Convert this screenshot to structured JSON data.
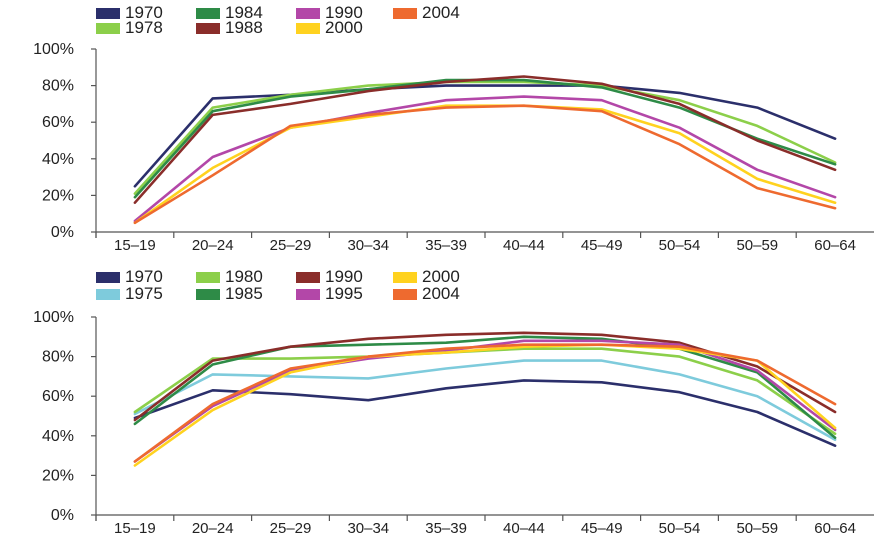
{
  "chart_data": [
    {
      "type": "line",
      "title": "",
      "xlabel": "",
      "ylabel": "",
      "ylim": [
        0,
        100
      ],
      "yticks": [
        "0%",
        "20%",
        "40%",
        "60%",
        "80%",
        "100%"
      ],
      "categories": [
        "15–19",
        "20–24",
        "25–29",
        "30–34",
        "35–39",
        "40–44",
        "45–49",
        "50–54",
        "50–59",
        "60–64"
      ],
      "grid": false,
      "legend_position": "top-left",
      "series": [
        {
          "name": "1970",
          "color": "#2b2f6b",
          "values": [
            25,
            73,
            75,
            78,
            80,
            80,
            80,
            76,
            68,
            51
          ]
        },
        {
          "name": "1978",
          "color": "#8ccf4a",
          "values": [
            21,
            68,
            75,
            80,
            82,
            82,
            80,
            72,
            58,
            38
          ]
        },
        {
          "name": "1984",
          "color": "#2e8b47",
          "values": [
            19,
            66,
            74,
            78,
            83,
            83,
            79,
            68,
            51,
            37
          ]
        },
        {
          "name": "1988",
          "color": "#8a2d2a",
          "values": [
            16,
            64,
            70,
            77,
            82,
            85,
            81,
            70,
            50,
            34
          ]
        },
        {
          "name": "1990",
          "color": "#b347a8",
          "values": [
            6,
            41,
            57,
            65,
            72,
            74,
            72,
            57,
            34,
            19
          ]
        },
        {
          "name": "2000",
          "color": "#ffd21f",
          "values": [
            5,
            35,
            57,
            63,
            69,
            69,
            67,
            54,
            29,
            16
          ]
        },
        {
          "name": "2004",
          "color": "#ee6a2f",
          "values": [
            5,
            31,
            58,
            64,
            68,
            69,
            66,
            48,
            24,
            13
          ]
        }
      ]
    },
    {
      "type": "line",
      "title": "",
      "xlabel": "",
      "ylabel": "",
      "ylim": [
        0,
        100
      ],
      "yticks": [
        "0%",
        "20%",
        "40%",
        "60%",
        "80%",
        "100%"
      ],
      "categories": [
        "15–19",
        "20–24",
        "25–29",
        "30–34",
        "35–39",
        "40–44",
        "45–49",
        "50–54",
        "50–59",
        "60–64"
      ],
      "grid": false,
      "legend_position": "top-left",
      "series": [
        {
          "name": "1970",
          "color": "#2b2f6b",
          "values": [
            49,
            63,
            61,
            58,
            64,
            68,
            67,
            62,
            52,
            35
          ]
        },
        {
          "name": "1975",
          "color": "#7ecbdc",
          "values": [
            51,
            71,
            70,
            69,
            74,
            78,
            78,
            71,
            60,
            38
          ]
        },
        {
          "name": "1980",
          "color": "#8ccf4a",
          "values": [
            52,
            79,
            79,
            80,
            82,
            84,
            84,
            80,
            68,
            41
          ]
        },
        {
          "name": "1985",
          "color": "#2e8b47",
          "values": [
            46,
            76,
            85,
            86,
            87,
            90,
            89,
            84,
            72,
            39
          ]
        },
        {
          "name": "1990",
          "color": "#8a2d2a",
          "values": [
            48,
            78,
            85,
            89,
            91,
            92,
            91,
            87,
            75,
            52
          ]
        },
        {
          "name": "1995",
          "color": "#b347a8",
          "values": [
            27,
            55,
            73,
            79,
            83,
            88,
            88,
            86,
            73,
            43
          ]
        },
        {
          "name": "2000",
          "color": "#ffd21f",
          "values": [
            25,
            53,
            72,
            80,
            82,
            85,
            86,
            84,
            78,
            44
          ]
        },
        {
          "name": "2004",
          "color": "#ee6a2f",
          "values": [
            27,
            56,
            74,
            80,
            84,
            86,
            86,
            85,
            78,
            56
          ]
        }
      ]
    }
  ]
}
